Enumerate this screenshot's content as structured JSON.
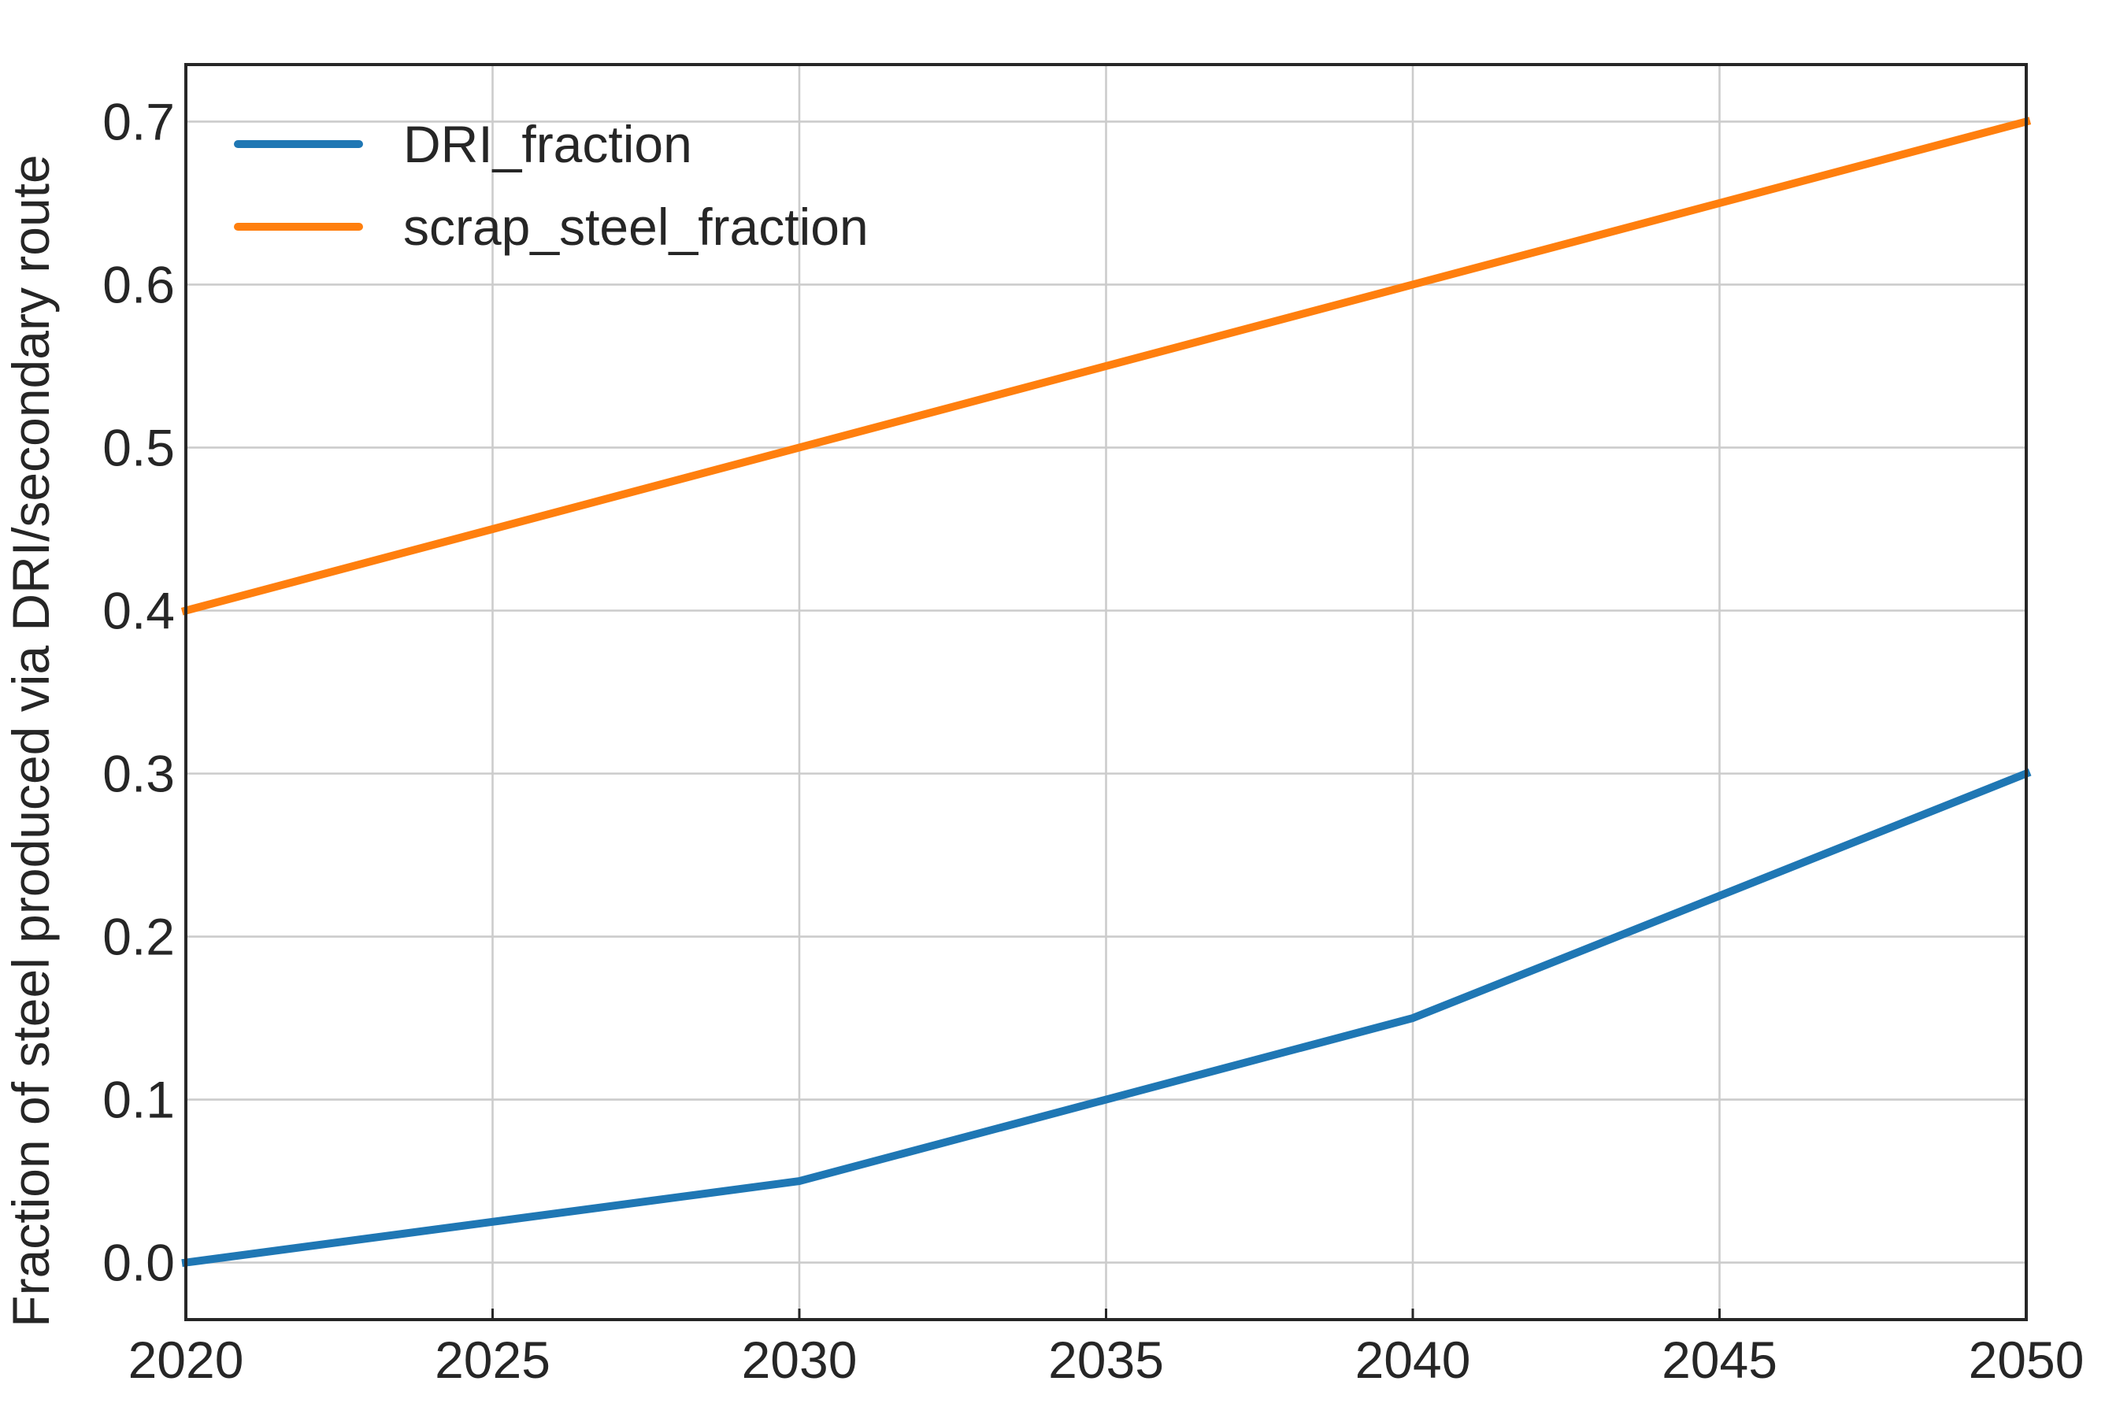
{
  "chart_data": {
    "type": "line",
    "title": "",
    "xlabel": "",
    "ylabel": "Fraction of steel produced via DRI/secondary route",
    "x": [
      2020,
      2025,
      2030,
      2035,
      2040,
      2045,
      2050
    ],
    "xlim": [
      2020,
      2050
    ],
    "ylim": [
      -0.035,
      0.735
    ],
    "xticks": [
      2020,
      2025,
      2030,
      2035,
      2040,
      2045,
      2050
    ],
    "xtick_labels": [
      "2020",
      "2025",
      "2030",
      "2035",
      "2040",
      "2045",
      "2050"
    ],
    "yticks": [
      0.0,
      0.1,
      0.2,
      0.3,
      0.4,
      0.5,
      0.6,
      0.7
    ],
    "ytick_labels": [
      "0.0",
      "0.1",
      "0.2",
      "0.3",
      "0.4",
      "0.5",
      "0.6",
      "0.7"
    ],
    "grid": true,
    "legend_position": "top-left",
    "series": [
      {
        "name": "DRI_fraction",
        "color": "#1f77b4",
        "values": [
          0.0,
          0.025,
          0.05,
          0.1,
          0.15,
          0.225,
          0.3
        ]
      },
      {
        "name": "scrap_steel_fraction",
        "color": "#ff7f0e",
        "values": [
          0.4,
          0.45,
          0.5,
          0.55,
          0.6,
          0.65,
          0.7
        ]
      }
    ]
  }
}
